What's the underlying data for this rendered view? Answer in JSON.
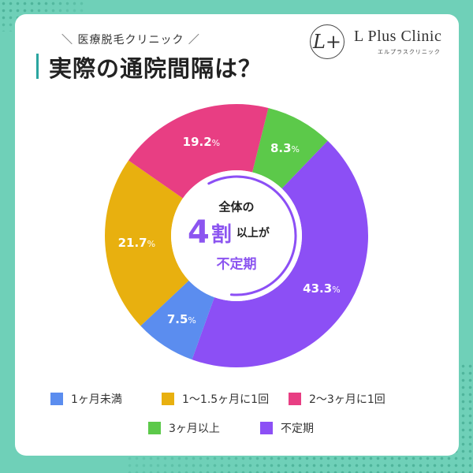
{
  "header": {
    "subtitle": "＼ 医療脱毛クリニック ／",
    "title": "実際の通院間隔は？"
  },
  "logo": {
    "mark": "L+",
    "name": "L Plus Clinic",
    "kana": "エルプラスクリニック"
  },
  "center": {
    "line1": "全体の",
    "big_number": "4",
    "unit": "割",
    "suffix": "以上が",
    "line3": "不定期"
  },
  "colors": {
    "blue": "#5b8def",
    "yellow": "#e8b00f",
    "pink": "#e83e83",
    "green": "#5cc94a",
    "purple": "#8c4ff5",
    "accent": "#2aa5a0",
    "background": "#6fd0b8"
  },
  "chart_data": {
    "type": "pie",
    "subtype": "donut",
    "title": "実際の通院間隔は？",
    "start_angle_deg_clockwise_from_top": 14,
    "categories": [
      "3ヶ月以上",
      "不定期",
      "1ヶ月未満",
      "1〜1.5ヶ月に1回",
      "2〜3ヶ月に1回"
    ],
    "values": [
      8.3,
      43.3,
      7.5,
      21.7,
      19.2
    ],
    "colors": [
      "#5cc94a",
      "#8c4ff5",
      "#5b8def",
      "#e8b00f",
      "#e83e83"
    ],
    "labels": [
      "8.3%",
      "43.3%",
      "7.5%",
      "21.7%",
      "19.2%"
    ],
    "center_annotation": "全体の4割以上が不定期",
    "legend_position": "bottom",
    "legend": [
      {
        "label": "1ヶ月未満",
        "color": "#5b8def"
      },
      {
        "label": "1〜1.5ヶ月に1回",
        "color": "#e8b00f"
      },
      {
        "label": "2〜3ヶ月に1回",
        "color": "#e83e83"
      },
      {
        "label": "3ヶ月以上",
        "color": "#5cc94a"
      },
      {
        "label": "不定期",
        "color": "#8c4ff5"
      }
    ]
  }
}
